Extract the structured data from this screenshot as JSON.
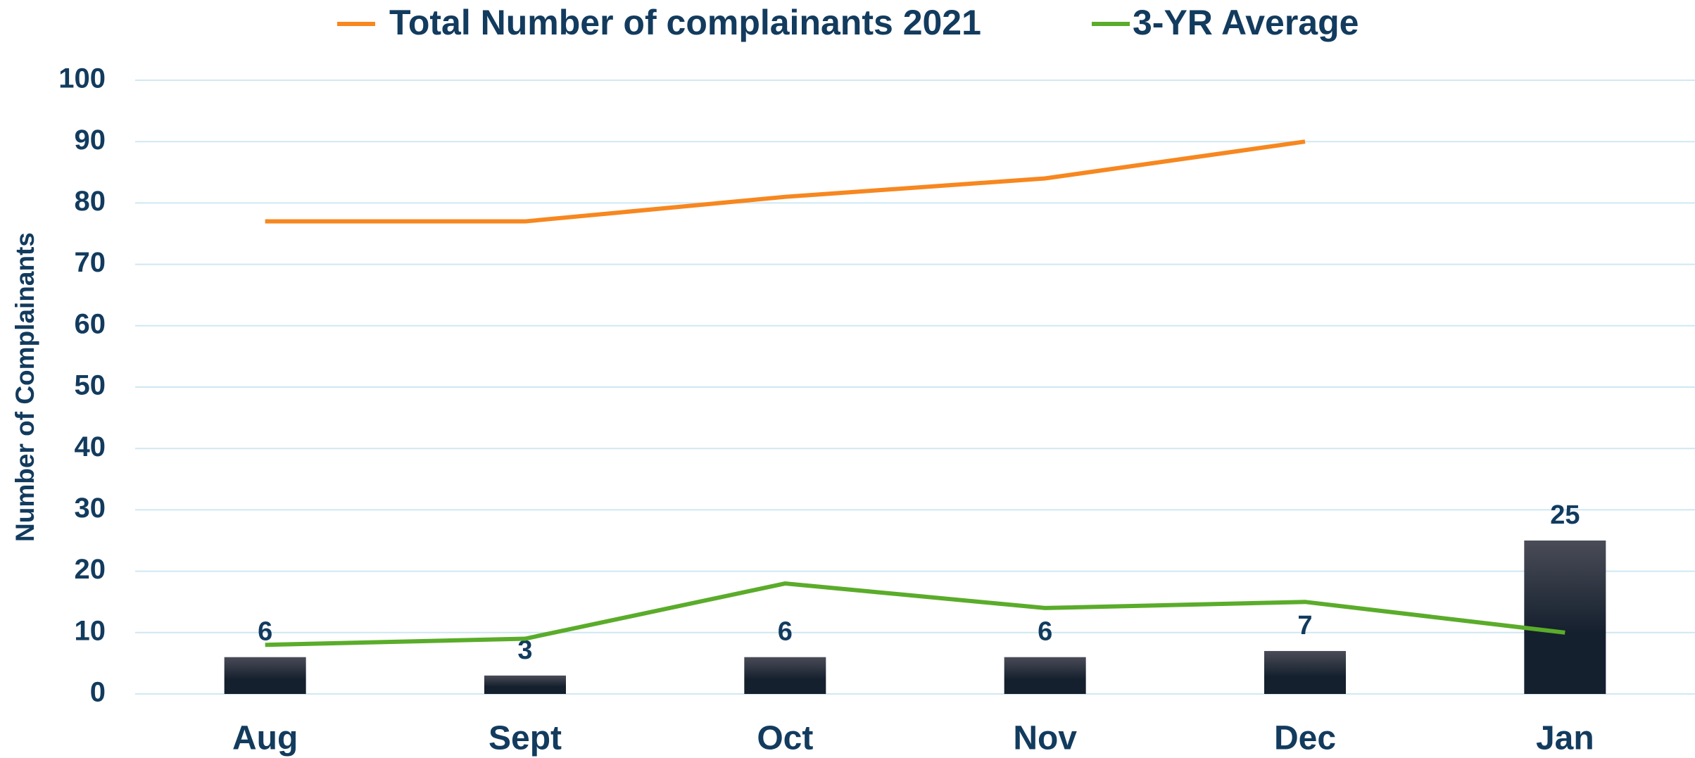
{
  "chart_data": {
    "type": "bar",
    "y_label": "Number of Complainants",
    "categories": [
      "Aug",
      "Sept",
      "Oct",
      "Nov",
      "Dec",
      "Jan"
    ],
    "series": [
      {
        "type": "bar",
        "color": "#15202e",
        "values": [
          6,
          3,
          6,
          6,
          7,
          25
        ]
      },
      {
        "type": "line",
        "name": "Total Number of complainants 2021",
        "color": "#f7871f",
        "values": [
          77,
          77,
          81,
          84,
          90,
          null
        ]
      },
      {
        "type": "line",
        "name": "3-YR Average",
        "color": "#5aac2a",
        "values": [
          8,
          9,
          18,
          14,
          15,
          10
        ]
      }
    ],
    "ylim": [
      0,
      100
    ],
    "yticks": [
      0,
      10,
      20,
      30,
      40,
      50,
      60,
      70,
      80,
      90,
      100
    ],
    "grid": true,
    "legend": "top"
  }
}
